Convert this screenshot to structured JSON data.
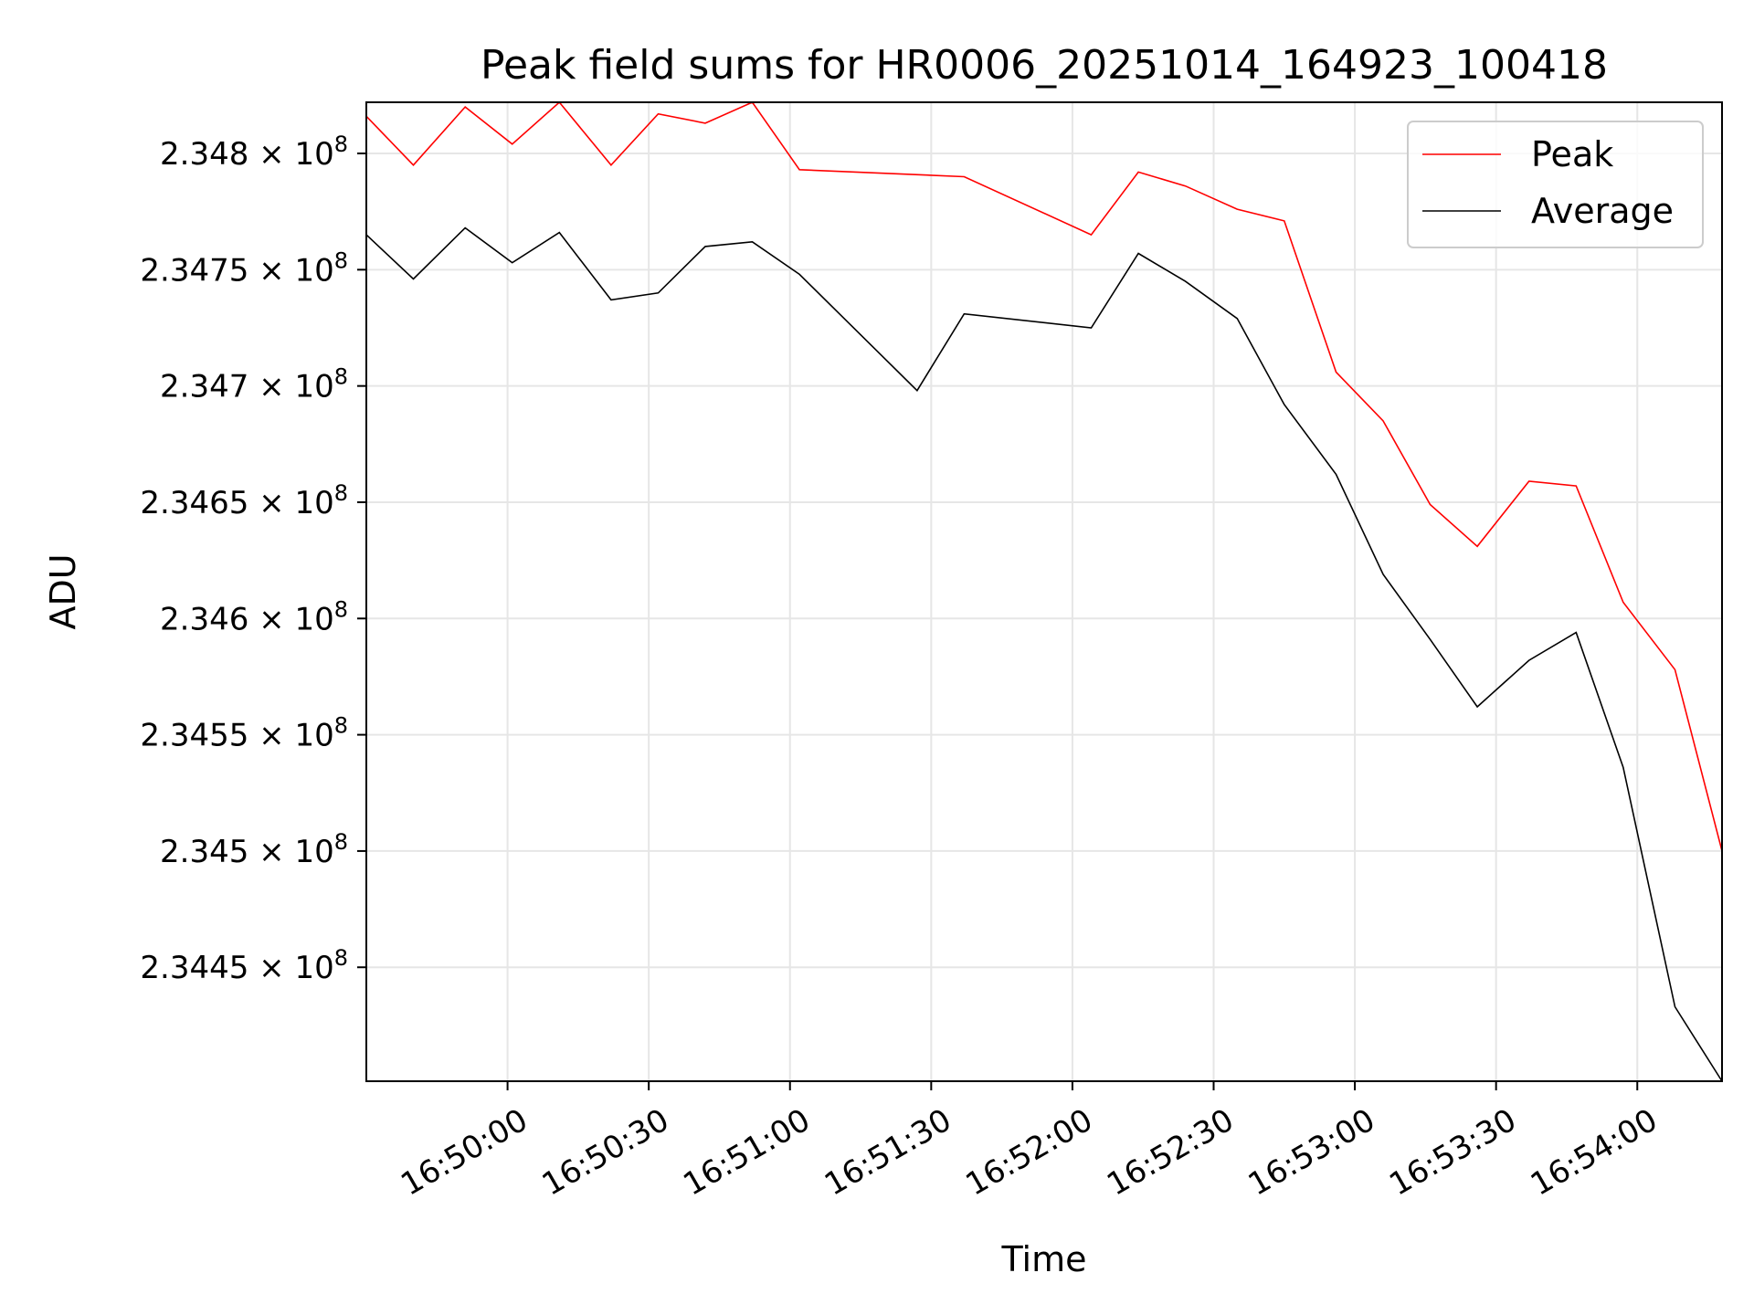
{
  "chart_data": {
    "type": "line",
    "title": "Peak field sums for HR0006_20251014_164923_100418",
    "xlabel": "Time",
    "ylabel": "ADU",
    "grid": true,
    "legend_position": "top-right",
    "x_ticks": [
      "16:50:00",
      "16:50:30",
      "16:51:00",
      "16:51:30",
      "16:52:00",
      "16:52:30",
      "16:53:00",
      "16:53:30",
      "16:54:00"
    ],
    "y_ticks": [
      {
        "value": 234450000,
        "mantissa": "2.3445",
        "exponent": "8"
      },
      {
        "value": 234500000,
        "mantissa": "2.345",
        "exponent": "8"
      },
      {
        "value": 234550000,
        "mantissa": "2.3455",
        "exponent": "8"
      },
      {
        "value": 234600000,
        "mantissa": "2.346",
        "exponent": "8"
      },
      {
        "value": 234650000,
        "mantissa": "2.3465",
        "exponent": "8"
      },
      {
        "value": 234700000,
        "mantissa": "2.347",
        "exponent": "8"
      },
      {
        "value": 234750000,
        "mantissa": "2.3475",
        "exponent": "8"
      },
      {
        "value": 234800000,
        "mantissa": "2.348",
        "exponent": "8"
      }
    ],
    "xlim": [
      "16:49:30",
      "16:54:18"
    ],
    "ylim": [
      234401000,
      234822000
    ],
    "series": [
      {
        "name": "Peak",
        "color": "#ff0000",
        "points": [
          [
            "16:49:30",
            234816000
          ],
          [
            "16:49:40",
            234795000
          ],
          [
            "16:49:51",
            234820000
          ],
          [
            "16:50:01",
            234804000
          ],
          [
            "16:50:11",
            234822000
          ],
          [
            "16:50:22",
            234795000
          ],
          [
            "16:50:32",
            234817000
          ],
          [
            "16:50:42",
            234813000
          ],
          [
            "16:50:52",
            234822000
          ],
          [
            "16:51:02",
            234793000
          ],
          [
            "16:51:37",
            234790000
          ],
          [
            "16:52:04",
            234765000
          ],
          [
            "16:52:14",
            234792000
          ],
          [
            "16:52:24",
            234786000
          ],
          [
            "16:52:35",
            234776000
          ],
          [
            "16:52:45",
            234771000
          ],
          [
            "16:52:56",
            234706000
          ],
          [
            "16:53:06",
            234685000
          ],
          [
            "16:53:16",
            234649000
          ],
          [
            "16:53:26",
            234631000
          ],
          [
            "16:53:37",
            234659000
          ],
          [
            "16:53:47",
            234657000
          ],
          [
            "16:53:57",
            234607000
          ],
          [
            "16:54:08",
            234578000
          ],
          [
            "16:54:18",
            234500000
          ]
        ]
      },
      {
        "name": "Average",
        "color": "#000000",
        "points": [
          [
            "16:49:30",
            234765000
          ],
          [
            "16:49:40",
            234746000
          ],
          [
            "16:49:51",
            234768000
          ],
          [
            "16:50:01",
            234753000
          ],
          [
            "16:50:11",
            234766000
          ],
          [
            "16:50:22",
            234737000
          ],
          [
            "16:50:32",
            234740000
          ],
          [
            "16:50:42",
            234760000
          ],
          [
            "16:50:52",
            234762000
          ],
          [
            "16:51:02",
            234748000
          ],
          [
            "16:51:27",
            234698000
          ],
          [
            "16:51:37",
            234731000
          ],
          [
            "16:52:04",
            234725000
          ],
          [
            "16:52:14",
            234757000
          ],
          [
            "16:52:24",
            234745000
          ],
          [
            "16:52:35",
            234729000
          ],
          [
            "16:52:45",
            234692000
          ],
          [
            "16:52:56",
            234662000
          ],
          [
            "16:53:06",
            234619000
          ],
          [
            "16:53:16",
            234591000
          ],
          [
            "16:53:26",
            234562000
          ],
          [
            "16:53:37",
            234582000
          ],
          [
            "16:53:47",
            234594000
          ],
          [
            "16:53:57",
            234536000
          ],
          [
            "16:54:08",
            234433000
          ],
          [
            "16:54:18",
            234401000
          ]
        ]
      }
    ]
  }
}
